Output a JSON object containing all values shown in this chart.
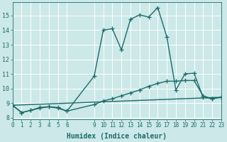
{
  "xlabel": "Humidex (Indice chaleur)",
  "bg_color": "#cce8e8",
  "line_color": "#1a6b6b",
  "grid_color": "#ffffff",
  "xlim": [
    0,
    23
  ],
  "ylim": [
    7.9,
    15.9
  ],
  "xtick_values": [
    0,
    1,
    2,
    3,
    4,
    5,
    6,
    9,
    10,
    11,
    12,
    13,
    14,
    15,
    16,
    17,
    18,
    19,
    20,
    21,
    22,
    23
  ],
  "ytick_values": [
    8,
    9,
    10,
    11,
    12,
    13,
    14,
    15
  ],
  "curve1_x": [
    0,
    1,
    2,
    3,
    4,
    5,
    6,
    9,
    10,
    11,
    12,
    13,
    14,
    15,
    16,
    17,
    18,
    19,
    20,
    21,
    22,
    23
  ],
  "curve1_y": [
    8.85,
    8.35,
    8.5,
    8.7,
    8.75,
    8.7,
    8.45,
    10.85,
    14.0,
    14.1,
    12.65,
    14.75,
    15.05,
    14.9,
    15.55,
    13.55,
    9.9,
    11.0,
    11.05,
    9.4,
    9.3,
    9.4
  ],
  "curve2_x": [
    0,
    1,
    2,
    3,
    4,
    5,
    6,
    9,
    10,
    11,
    12,
    13,
    14,
    15,
    16,
    17,
    18,
    19,
    20,
    21,
    22,
    23
  ],
  "curve2_y": [
    8.85,
    8.35,
    8.5,
    8.65,
    8.75,
    8.65,
    8.45,
    8.9,
    9.15,
    9.3,
    9.5,
    9.7,
    9.9,
    10.15,
    10.35,
    10.5,
    10.5,
    10.55,
    10.55,
    9.5,
    9.3,
    9.4
  ],
  "curve3_x": [
    0,
    23
  ],
  "curve3_y": [
    8.85,
    9.4
  ],
  "marker": "+",
  "marker_size": 4,
  "linewidth": 1.0,
  "tick_fontsize": 5.5,
  "xlabel_fontsize": 7.0
}
